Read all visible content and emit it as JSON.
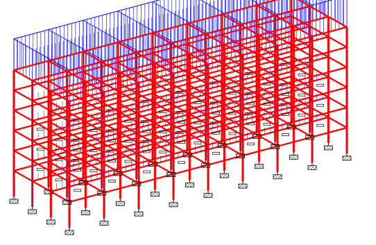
{
  "colors": {
    "background": "#ffffff",
    "frame_members": "#ff0000",
    "loads": "#0000ff",
    "supports": "#000000",
    "labels": "#000000"
  },
  "model": {
    "bays_along_length": 8,
    "bays_along_depth": 3,
    "storeys": 6,
    "support_symbol": "hatched-box",
    "roof_load_pattern": "vertical-arrows",
    "floor_load_pattern": "vertical-arrows"
  }
}
